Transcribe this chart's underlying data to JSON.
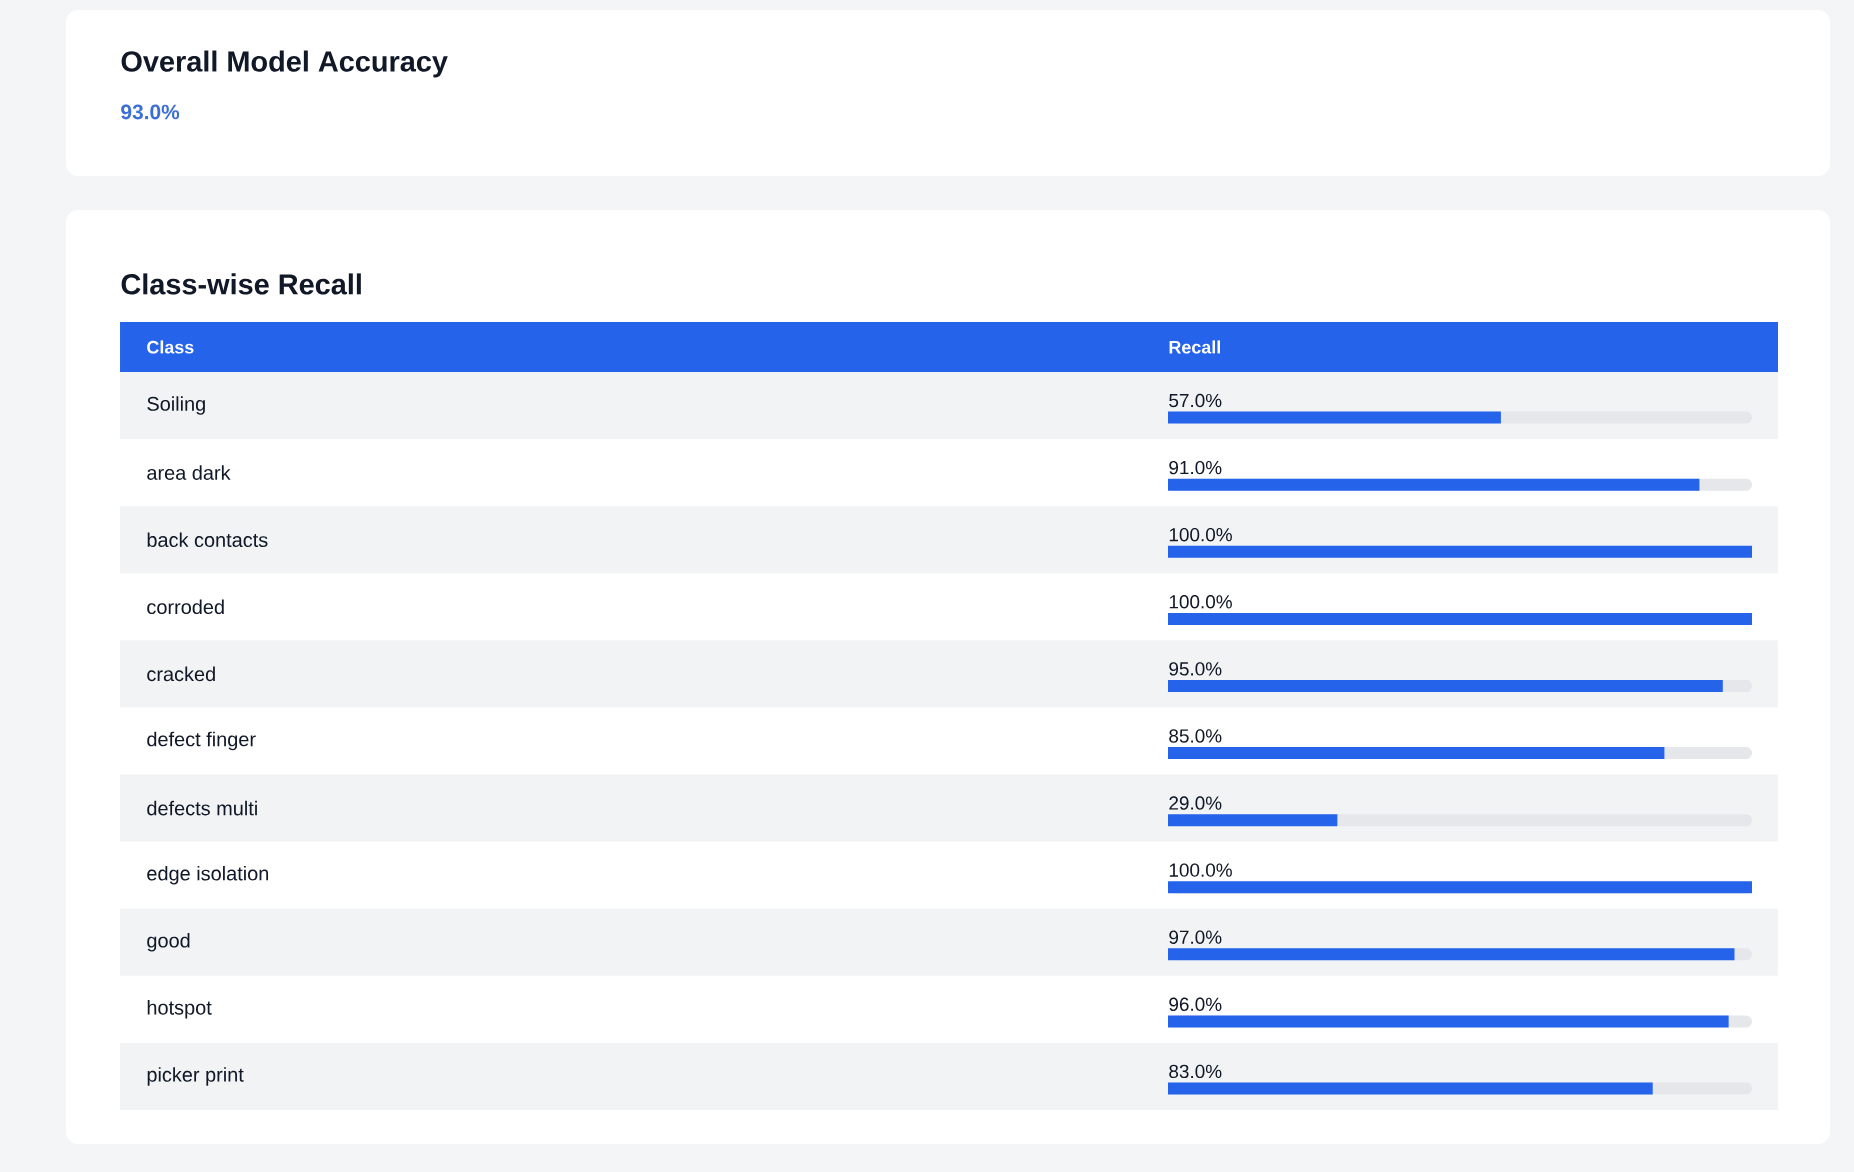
{
  "chart_data": {
    "type": "bar",
    "orientation": "horizontal",
    "title": "Class-wise Recall",
    "ylabel": "Class",
    "xlabel": "Recall",
    "annotations": [
      "Overall Model Accuracy",
      "93.0%"
    ],
    "categories": [
      "Soiling",
      "area dark",
      "back contacts",
      "corroded",
      "cracked",
      "defect finger",
      "defects multi",
      "edge isolation",
      "good",
      "hotspot",
      "picker print"
    ],
    "values": [
      57,
      91,
      100,
      100,
      95,
      85,
      29,
      100,
      97,
      96,
      83
    ],
    "value_labels": [
      "57.0%",
      "91.0%",
      "100.0%",
      "100.0%",
      "95.0%",
      "85.0%",
      "29.0%",
      "100.0%",
      "97.0%",
      "96.0%",
      "83.0%"
    ],
    "color": "#2563eb",
    "tick_labels": "y"
  }
}
